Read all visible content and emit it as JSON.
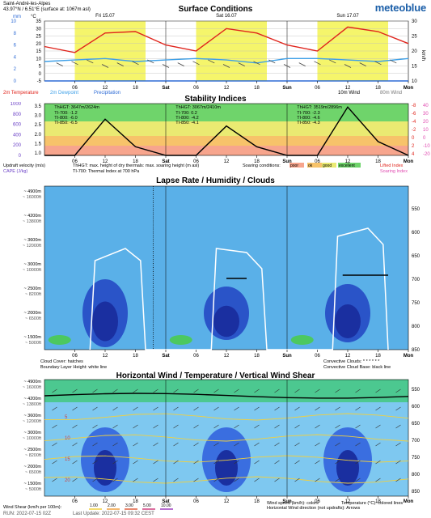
{
  "header": {
    "location": "Saint-André-les-Alpes",
    "coords": "43.97°N / 6.51°E (surface at: 1067m asl)",
    "logo": "meteoblue"
  },
  "surface": {
    "title": "Surface Conditions",
    "left_unit_top": "mm",
    "left_unit_2": "°C",
    "right_unit": "km/h",
    "days": [
      "Fri 15.07",
      "Sat 16.07",
      "Sun 17.07"
    ],
    "legend_temp": "2m Temperature",
    "legend_dew": "2m Dewpoint",
    "legend_precip": "Precipitation",
    "legend_wind10": "10m Wind",
    "legend_wind80": "80m Wind"
  },
  "stability": {
    "title": "Stability Indices",
    "updraft_label": "Updraft velocity (m/s)",
    "thhgt_label": "ThHGT: max. height of dry thermals: max. soaring height (m asl)",
    "ti_label": "TI-700: Thermal Index at 700 hPa",
    "cape_label": "CAPE (J/kg)",
    "soaring_label": "Soaring conditions:",
    "soaring_poor": "poor",
    "soaring_ok": "ok",
    "soaring_good": "good",
    "soaring_excellent": "excellent",
    "lifted_index": "Lifted Index",
    "soaring_index": "Soaring Index",
    "day1_text": "ThHGT: 3647m/2624m",
    "day1_ti700": "TI-700: -1.2",
    "day1_ti800": "TI-800: -6.0",
    "day1_ti850": "TI-850: -6.5",
    "day2_text": "ThHGT: 3067m/2410m",
    "day2_ti700": "TI-700: 0.2",
    "day2_ti800": "TI-800: -4.2",
    "day2_ti850": "TI-850: -4.1",
    "day3_text": "ThHGT: 3519m/2896m",
    "day3_ti700": "TI-700: -2.3",
    "day3_ti800": "TI-800: -4.6",
    "day3_ti850": "TI-850: -4.3"
  },
  "lapse": {
    "title": "Lapse Rate / Humidity / Clouds",
    "cloud_cover": "Cloud Cover: hatches",
    "blh": "Boundary Layer Height: white line",
    "conv_clouds": "Convective Clouds: * * * * * *",
    "conv_base": "Convective Cloud Base: black line"
  },
  "wind": {
    "title": "Horizontal Wind / Temperature / Vertical Wind Shear",
    "shear_label": "Wind Shear (km/h per 100m):",
    "shear_vals": [
      "1.00",
      "2.00",
      "3.00",
      "5.00",
      "10.00"
    ],
    "speed_label": "Wind speed (km/h): colors",
    "temp_label": "Temperature (°C): colored lines",
    "dir_label": "Horizontal Wind direction (not updrafts): Arrows"
  },
  "alt_labels": [
    "~ 4900m",
    "~ 16000ft",
    "~ 4200m",
    "~ 13800ft",
    "~ 3600m",
    "~ 12000ft",
    "~ 3000m",
    "~ 10000ft",
    "~ 2500m",
    "~ 8200ft",
    "~ 2000m",
    "~ 6500ft",
    "~ 1500m",
    "~ 5000ft"
  ],
  "hpa": [
    "550",
    "600",
    "650",
    "700",
    "750",
    "800",
    "850"
  ],
  "xticks": [
    "06",
    "12",
    "18",
    "Sat",
    "06",
    "12",
    "18",
    "Sun",
    "06",
    "12",
    "18",
    "Mon"
  ],
  "footer": {
    "run": "RUN: 2022-07-15 02Z",
    "update": "Last Update: 2022-07-15 09:32 CEST"
  },
  "chart_data": [
    {
      "type": "line",
      "title": "Surface Conditions",
      "x": [
        "Fri 00",
        "Fri 06",
        "Fri 12",
        "Fri 18",
        "Sat 00",
        "Sat 06",
        "Sat 12",
        "Sat 18",
        "Sun 00",
        "Sun 06",
        "Sun 12",
        "Sun 18",
        "Mon 00"
      ],
      "y_left_ticks_temp": [
        -5,
        0,
        5,
        10,
        15,
        20,
        25,
        30,
        35
      ],
      "y_left_ticks_precip": [
        0,
        1,
        2,
        3,
        4,
        5,
        6,
        7,
        8,
        9,
        10
      ],
      "y_right_ticks_wind": [
        10,
        15,
        20,
        25,
        30
      ],
      "series": [
        {
          "name": "2m Temperature",
          "values": [
            18,
            14,
            27,
            28,
            19,
            15,
            30,
            27,
            19,
            15,
            31,
            28,
            20
          ]
        },
        {
          "name": "2m Dewpoint",
          "values": [
            8,
            9,
            10,
            8,
            9,
            10,
            9,
            7,
            10,
            10,
            9,
            8,
            10
          ]
        },
        {
          "name": "Precipitation",
          "values": [
            0,
            0,
            0,
            0,
            0,
            0,
            0,
            0,
            0,
            0,
            0,
            0,
            0
          ]
        }
      ],
      "ylim": [
        -5,
        35
      ]
    },
    {
      "type": "line",
      "title": "Stability Indices",
      "x": [
        "Fri 00",
        "Fri 06",
        "Fri 12",
        "Fri 18",
        "Sat 00",
        "Sat 06",
        "Sat 12",
        "Sat 18",
        "Sun 00",
        "Sun 06",
        "Sun 12",
        "Sun 18",
        "Mon 00"
      ],
      "y_left_ticks": [
        1.0,
        1.5,
        2.0,
        2.5,
        3.0,
        3.5
      ],
      "y_cape_ticks": [
        0,
        200,
        400,
        600,
        800,
        1000
      ],
      "y_right_ticks_lifted": [
        -8,
        -6,
        -4,
        -2,
        0,
        2,
        4
      ],
      "y_right_ticks_soaring": [
        40,
        30,
        20,
        10,
        0,
        -10,
        -20
      ],
      "series": [
        {
          "name": "Updraft velocity (m/s)",
          "values": [
            0.5,
            0.5,
            2.6,
            1.0,
            0.5,
            0.5,
            2.2,
            1.0,
            0.5,
            0.5,
            3.3,
            1.3,
            0.5
          ]
        }
      ]
    },
    {
      "type": "heatmap",
      "title": "Lapse Rate / Humidity / Clouds",
      "y_pressure_hpa": [
        550,
        600,
        650,
        700,
        750,
        800,
        850
      ]
    },
    {
      "type": "heatmap",
      "title": "Horizontal Wind / Temperature / Vertical Wind Shear",
      "y_pressure_hpa": [
        550,
        600,
        650,
        700,
        750,
        800,
        850
      ],
      "temperature_contours": [
        0,
        5,
        10,
        15,
        20
      ]
    }
  ]
}
